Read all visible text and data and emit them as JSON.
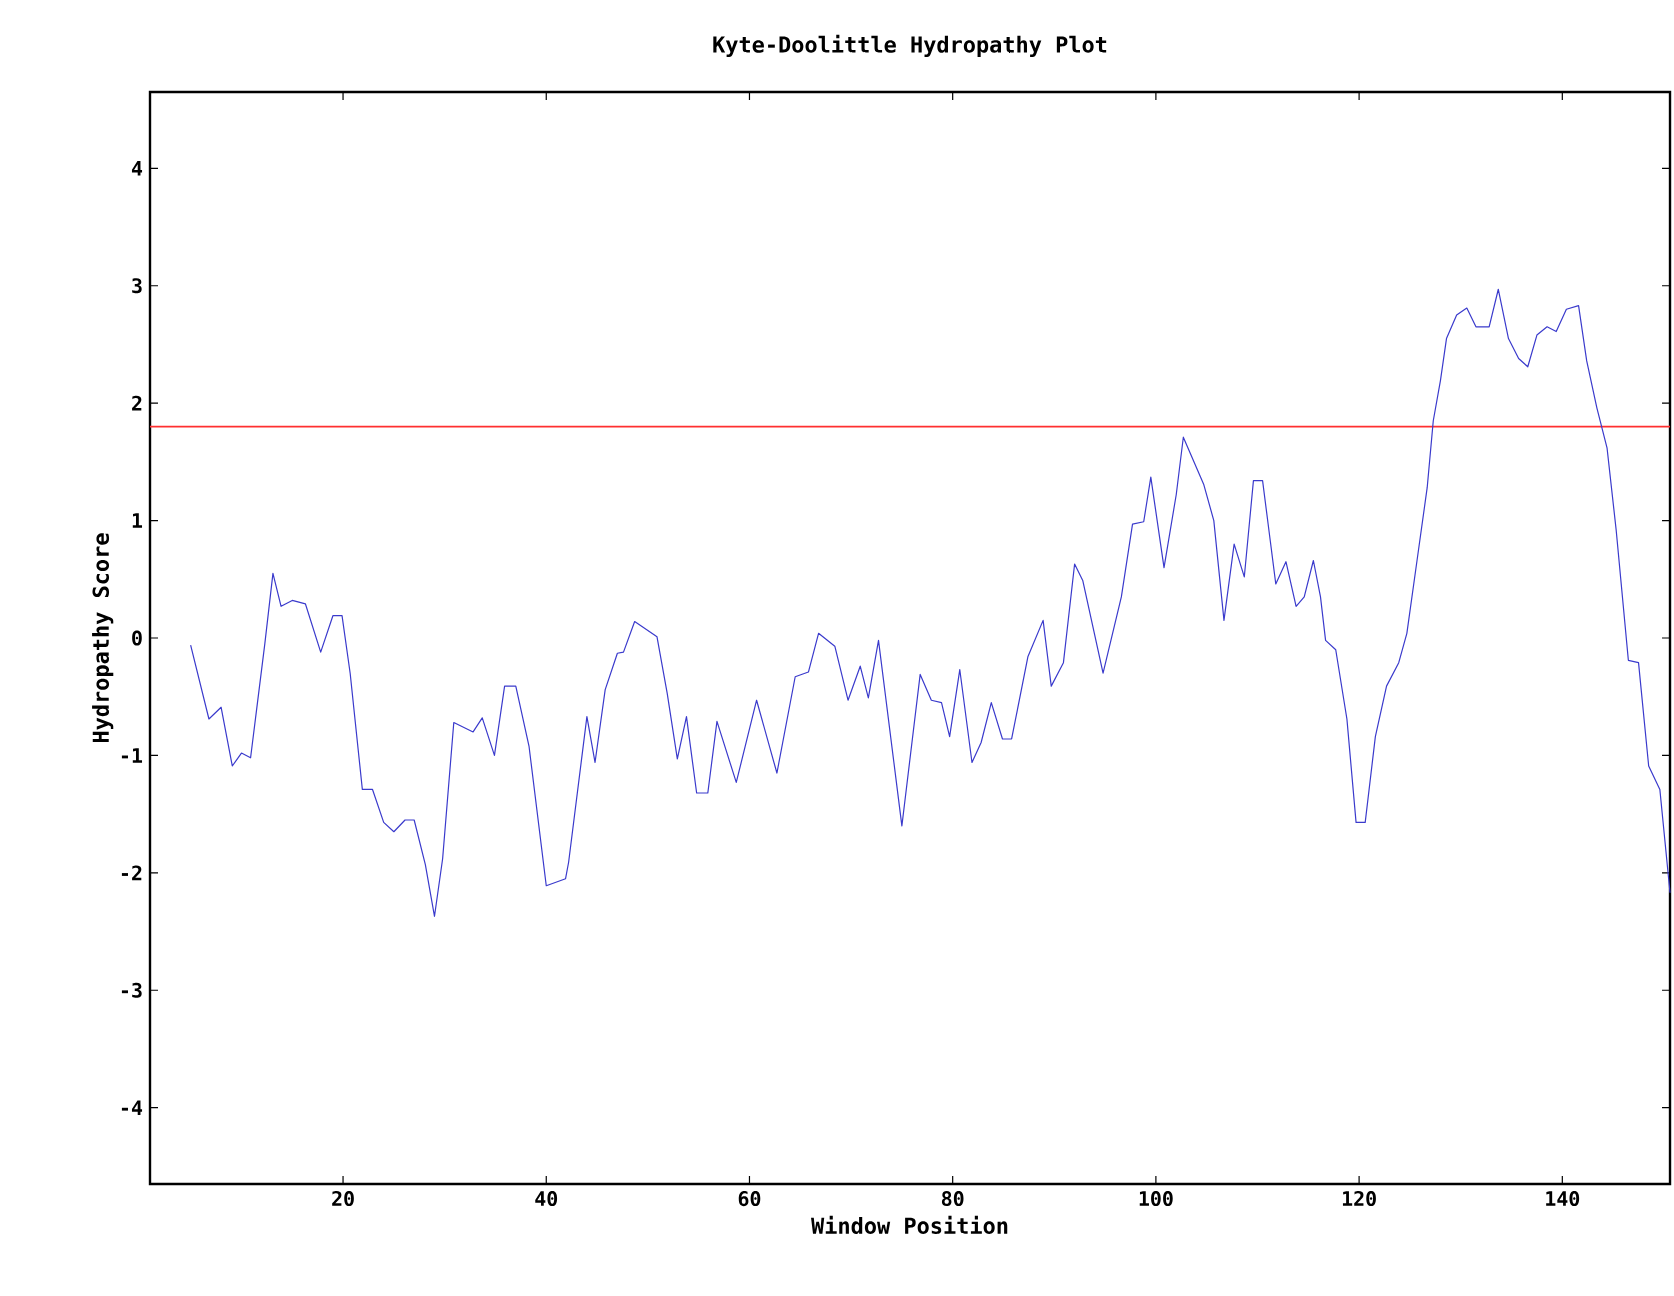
{
  "chart_data": {
    "type": "line",
    "title": "Kyte-Doolittle Hydropathy Plot",
    "xlabel": "Window Position",
    "ylabel": "Hydropathy Score",
    "xlim": [
      1,
      150.6
    ],
    "ylim": [
      -4.65,
      4.65
    ],
    "xticks": [
      20,
      40,
      60,
      80,
      100,
      120,
      140
    ],
    "yticks": [
      -4,
      -3,
      -2,
      -1,
      0,
      1,
      2,
      3,
      4
    ],
    "grid": false,
    "marker": "none",
    "line_style": "solid",
    "series": [
      {
        "color": "#3a3acc",
        "x": [
          5.0,
          6.8,
          8.0,
          9.1,
          10.0,
          10.9,
          12.3,
          13.1,
          13.9,
          15.0,
          16.3,
          17.8,
          19.0,
          19.9,
          20.7,
          21.9,
          22.9,
          24.0,
          25.0,
          26.1,
          27.0,
          28.1,
          29.0,
          29.8,
          30.9,
          32.8,
          33.7,
          34.9,
          35.9,
          37.0,
          38.3,
          40.0,
          41.9,
          42.2,
          44.0,
          44.8,
          45.8,
          47.0,
          47.6,
          48.7,
          50.9,
          51.9,
          52.9,
          53.8,
          54.8,
          55.9,
          56.8,
          58.7,
          60.7,
          62.7,
          64.5,
          65.8,
          66.8,
          68.4,
          69.7,
          70.9,
          71.7,
          72.7,
          75.0,
          76.8,
          77.9,
          78.9,
          79.7,
          80.7,
          81.9,
          82.8,
          83.8,
          84.9,
          85.8,
          87.4,
          88.9,
          89.7,
          90.9,
          92.0,
          92.8,
          94.8,
          96.6,
          97.7,
          98.8,
          99.5,
          100.8,
          102.0,
          102.7,
          104.7,
          105.7,
          106.7,
          107.7,
          108.7,
          109.6,
          110.5,
          111.8,
          112.8,
          113.8,
          114.6,
          115.5,
          116.2,
          116.7,
          117.7,
          118.8,
          119.7,
          120.6,
          121.6,
          122.7,
          123.9,
          124.7,
          125.7,
          126.7,
          127.3,
          128.0,
          128.6,
          129.6,
          130.6,
          131.5,
          132.8,
          133.7,
          134.7,
          135.7,
          136.6,
          137.5,
          138.5,
          139.4,
          140.4,
          141.6,
          142.4,
          143.4,
          144.4,
          145.3,
          146.5,
          147.5,
          148.5,
          149.6,
          150.6
        ],
        "values": [
          -0.06,
          -0.69,
          -0.59,
          -1.09,
          -0.98,
          -1.02,
          -0.05,
          0.55,
          0.27,
          0.32,
          0.29,
          -0.12,
          0.19,
          0.19,
          -0.3,
          -1.29,
          -1.29,
          -1.57,
          -1.65,
          -1.55,
          -1.55,
          -1.93,
          -2.37,
          -1.88,
          -0.72,
          -0.8,
          -0.68,
          -1.0,
          -0.41,
          -0.41,
          -0.92,
          -2.11,
          -2.05,
          -1.91,
          -0.67,
          -1.06,
          -0.44,
          -0.13,
          -0.12,
          0.14,
          0.01,
          -0.47,
          -1.03,
          -0.67,
          -1.32,
          -1.32,
          -0.71,
          -1.23,
          -0.53,
          -1.15,
          -0.33,
          -0.29,
          0.04,
          -0.07,
          -0.53,
          -0.24,
          -0.51,
          -0.02,
          -1.6,
          -0.31,
          -0.53,
          -0.55,
          -0.84,
          -0.27,
          -1.06,
          -0.89,
          -0.55,
          -0.86,
          -0.86,
          -0.16,
          0.15,
          -0.41,
          -0.21,
          0.63,
          0.49,
          -0.3,
          0.35,
          0.97,
          0.99,
          1.37,
          0.6,
          1.22,
          1.71,
          1.31,
          1.0,
          0.15,
          0.8,
          0.52,
          1.34,
          1.34,
          0.46,
          0.65,
          0.27,
          0.35,
          0.66,
          0.35,
          -0.02,
          -0.1,
          -0.69,
          -1.57,
          -1.57,
          -0.84,
          -0.41,
          -0.21,
          0.04,
          0.66,
          1.28,
          1.85,
          2.19,
          2.55,
          2.75,
          2.81,
          2.65,
          2.65,
          2.97,
          2.55,
          2.38,
          2.31,
          2.58,
          2.65,
          2.61,
          2.8,
          2.83,
          2.36,
          1.96,
          1.62,
          0.92,
          -0.19,
          -0.21,
          -1.09,
          -1.29,
          -2.17
        ]
      }
    ],
    "ref_lines": [
      {
        "axis": "y",
        "value": 1.8,
        "color": "#ff3030"
      }
    ]
  }
}
